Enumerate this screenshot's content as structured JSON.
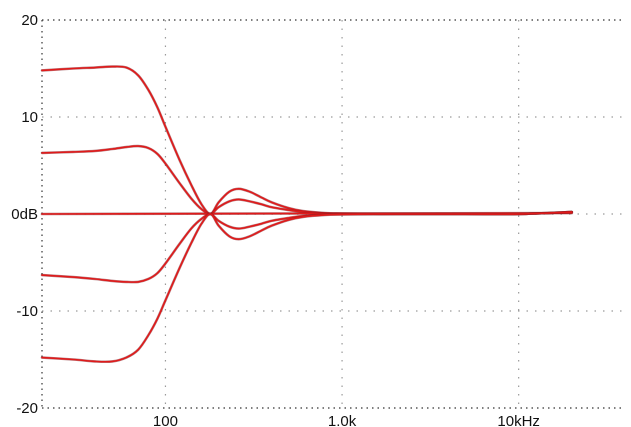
{
  "chart_data": {
    "type": "line",
    "title": "",
    "xlabel": "",
    "ylabel": "",
    "x_scale": "log",
    "xlim": [
      20,
      40000
    ],
    "ylim": [
      -20,
      20
    ],
    "grid": true,
    "colors": {
      "curve": "#e01a1a",
      "curve_outline": "#7a1a20",
      "grid": "#9a9a9a",
      "axis": "#333333"
    },
    "x_ticks": [
      {
        "value": 100,
        "label": "100"
      },
      {
        "value": 1000,
        "label": "1.0k"
      },
      {
        "value": 10000,
        "label": "10kHz"
      }
    ],
    "y_ticks": [
      {
        "value": 20,
        "label": "20"
      },
      {
        "value": 10,
        "label": "10"
      },
      {
        "value": 0,
        "label": "0dB"
      },
      {
        "value": -10,
        "label": "-10"
      },
      {
        "value": -20,
        "label": "-20"
      }
    ],
    "series": [
      {
        "x": [
          20,
          30,
          40,
          50,
          60,
          70,
          80,
          90,
          100,
          120,
          140,
          160,
          180,
          200,
          230,
          260,
          300,
          350,
          400,
          500,
          600,
          800,
          1000,
          1500,
          2000,
          5000,
          10000,
          20000
        ],
        "y": [
          14.8,
          15.0,
          15.1,
          15.2,
          15.1,
          14.3,
          12.8,
          11.0,
          9.0,
          5.6,
          3.0,
          1.0,
          0.0,
          1.2,
          2.3,
          2.6,
          2.3,
          1.7,
          1.2,
          0.6,
          0.3,
          0.1,
          0.05,
          0.0,
          0.0,
          0.0,
          0.0,
          0.2
        ]
      },
      {
        "x": [
          20,
          30,
          40,
          50,
          60,
          70,
          80,
          90,
          100,
          120,
          140,
          160,
          180,
          200,
          230,
          260,
          300,
          350,
          400,
          500,
          600,
          800,
          1000,
          1500,
          2000,
          5000,
          10000,
          20000
        ],
        "y": [
          6.3,
          6.4,
          6.5,
          6.7,
          6.9,
          7.0,
          6.8,
          6.2,
          5.2,
          3.2,
          1.6,
          0.5,
          0.0,
          0.7,
          1.3,
          1.5,
          1.3,
          1.0,
          0.7,
          0.4,
          0.2,
          0.05,
          0.0,
          0.0,
          0.0,
          0.0,
          0.0,
          0.2
        ]
      },
      {
        "x": [
          20,
          20000
        ],
        "y": [
          0.0,
          0.1
        ]
      },
      {
        "x": [
          20,
          30,
          40,
          50,
          60,
          70,
          80,
          90,
          100,
          120,
          140,
          160,
          180,
          200,
          230,
          260,
          300,
          350,
          400,
          500,
          600,
          800,
          1000,
          1500,
          2000,
          5000,
          10000,
          20000
        ],
        "y": [
          -6.3,
          -6.5,
          -6.7,
          -6.9,
          -7.0,
          -7.0,
          -6.7,
          -6.1,
          -5.1,
          -3.1,
          -1.5,
          -0.5,
          0.0,
          -0.7,
          -1.3,
          -1.5,
          -1.3,
          -1.0,
          -0.7,
          -0.4,
          -0.2,
          -0.05,
          0.0,
          0.0,
          0.0,
          0.0,
          0.0,
          0.2
        ]
      },
      {
        "x": [
          20,
          30,
          40,
          50,
          60,
          70,
          80,
          90,
          100,
          120,
          140,
          160,
          180,
          200,
          230,
          260,
          300,
          350,
          400,
          500,
          600,
          800,
          1000,
          1500,
          2000,
          5000,
          10000,
          20000
        ],
        "y": [
          -14.8,
          -15.0,
          -15.2,
          -15.2,
          -14.8,
          -14.0,
          -12.5,
          -10.8,
          -8.9,
          -5.6,
          -3.0,
          -1.0,
          0.0,
          -1.2,
          -2.3,
          -2.6,
          -2.3,
          -1.7,
          -1.2,
          -0.6,
          -0.3,
          -0.1,
          -0.05,
          0.0,
          0.0,
          0.0,
          0.0,
          0.2
        ]
      }
    ]
  }
}
